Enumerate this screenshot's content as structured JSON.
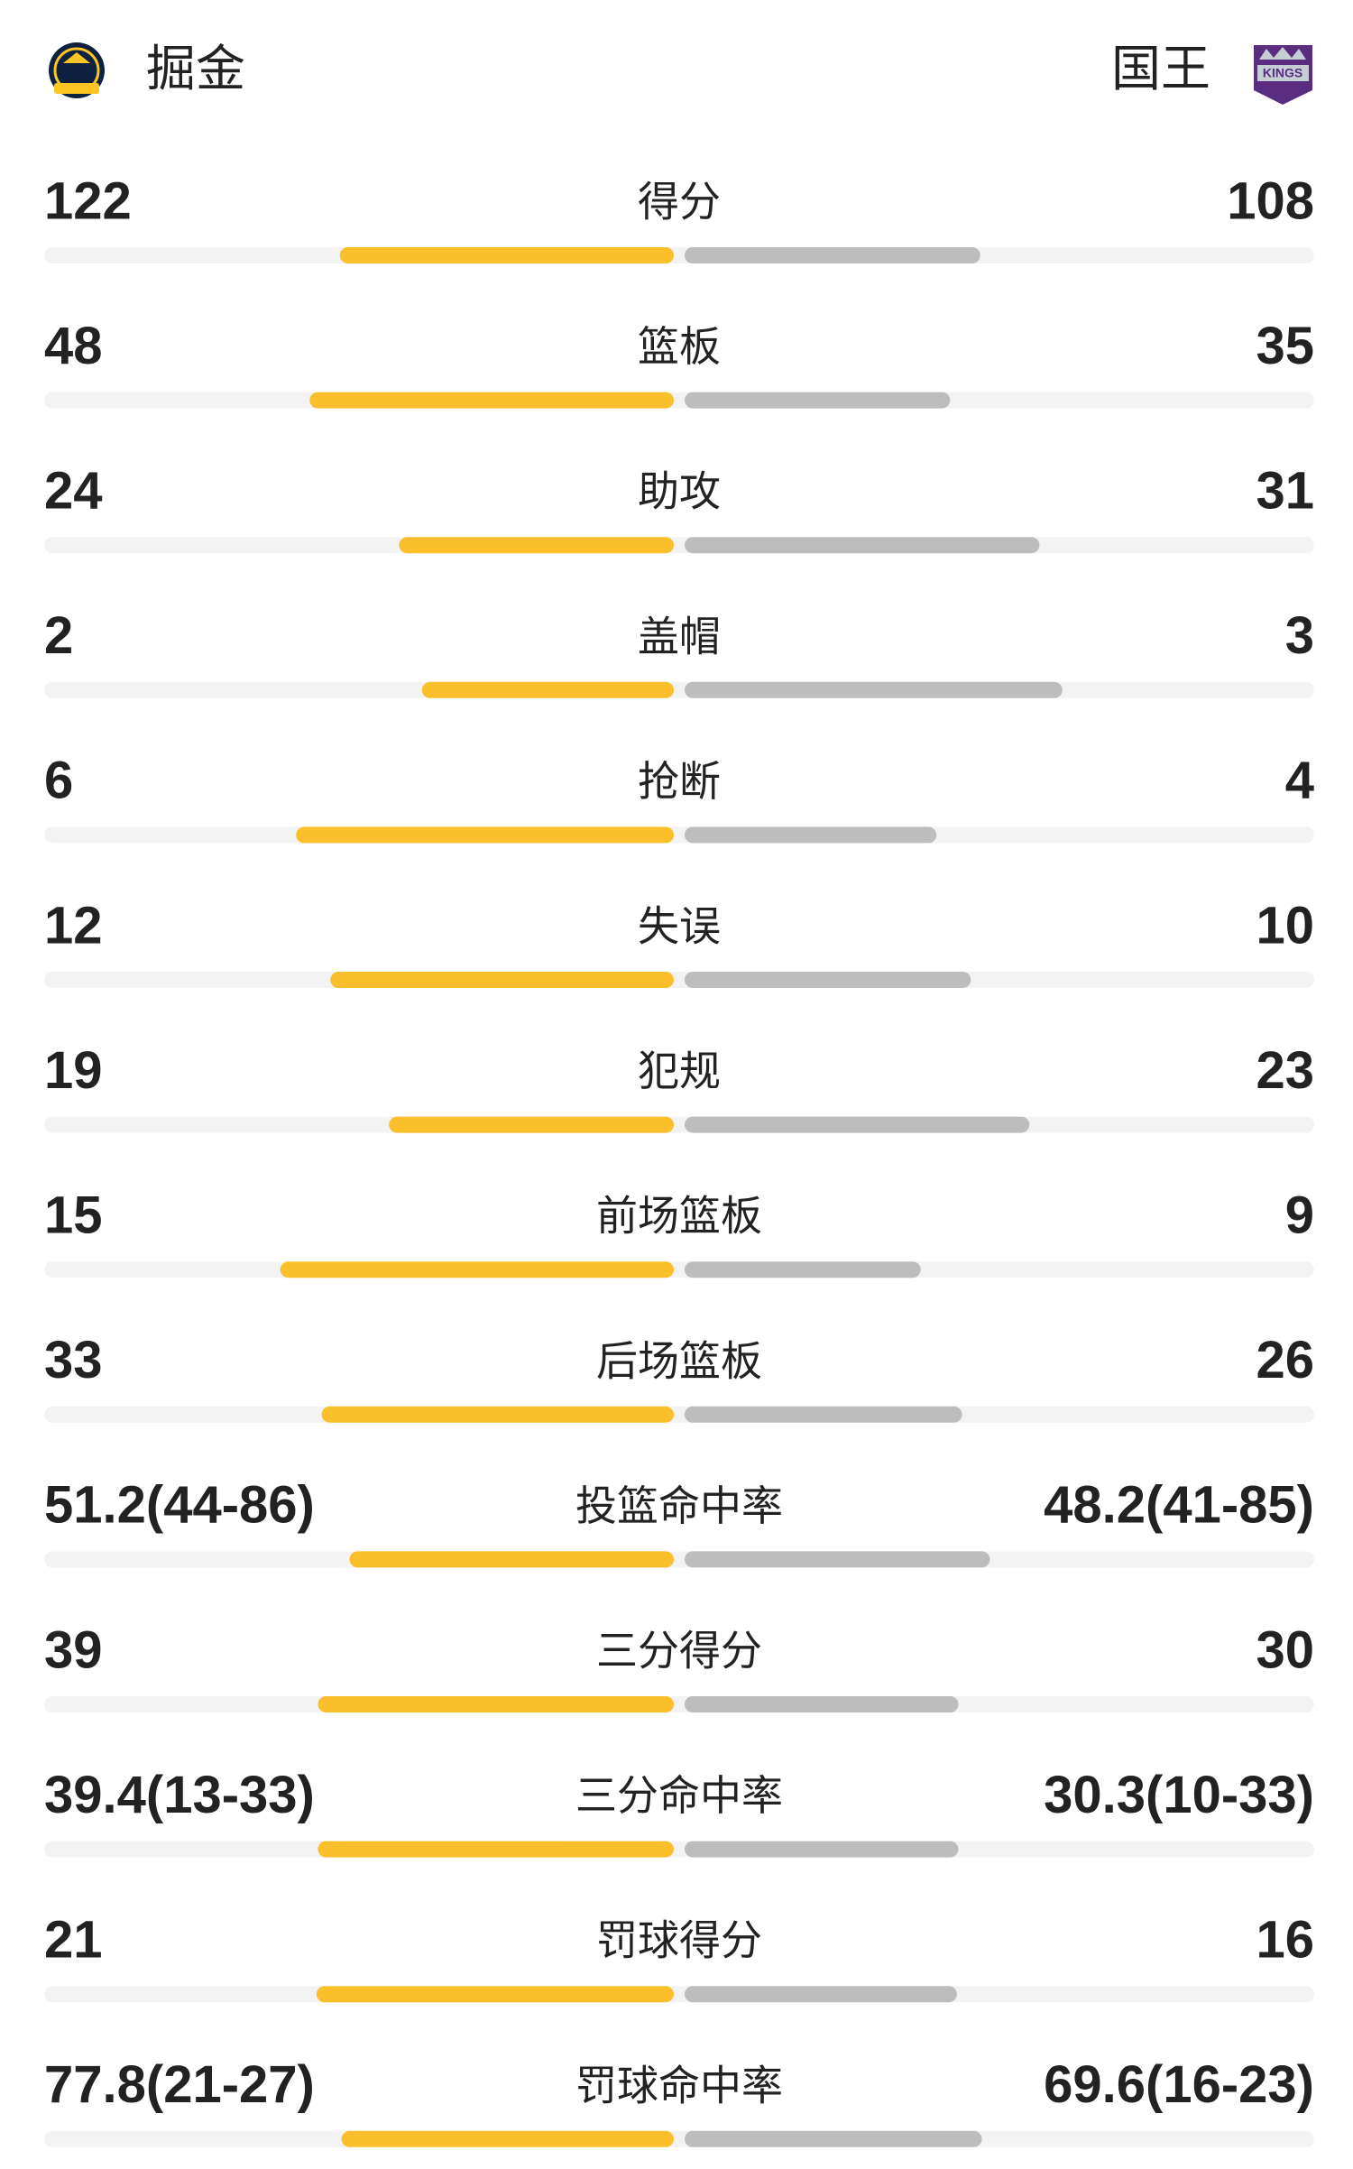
{
  "header": {
    "home": "掘金",
    "away": "国王"
  },
  "rows": [
    {
      "name": "得分",
      "left": 122,
      "right": 108
    },
    {
      "name": "篮板",
      "left": 48,
      "right": 35
    },
    {
      "name": "助攻",
      "left": 24,
      "right": 31
    },
    {
      "name": "盖帽",
      "left": 2,
      "right": 3
    },
    {
      "name": "抢断",
      "left": 6,
      "right": 4
    },
    {
      "name": "失误",
      "left": 12,
      "right": 10
    },
    {
      "name": "犯规",
      "left": 19,
      "right": 23
    },
    {
      "name": "前场篮板",
      "left": 15,
      "right": 9
    },
    {
      "name": "后场篮板",
      "left": 33,
      "right": 26
    },
    {
      "name": "投篮命中率",
      "left": {
        "value": 51.2,
        "label": "51.2(44-86)"
      },
      "right": {
        "value": 48.2,
        "label": "48.2(41-85)"
      }
    },
    {
      "name": "三分得分",
      "left": 39,
      "right": 30
    },
    {
      "name": "三分命中率",
      "left": {
        "value": 39.4,
        "label": "39.4(13-33)"
      },
      "right": {
        "value": 30.3,
        "label": "30.3(10-33)"
      }
    },
    {
      "name": "罚球得分",
      "left": 21,
      "right": 16
    },
    {
      "name": "罚球命中率",
      "left": {
        "value": 77.8,
        "label": "77.8(21-27)"
      },
      "right": {
        "value": 69.6,
        "label": "69.6(16-23)"
      }
    }
  ]
}
